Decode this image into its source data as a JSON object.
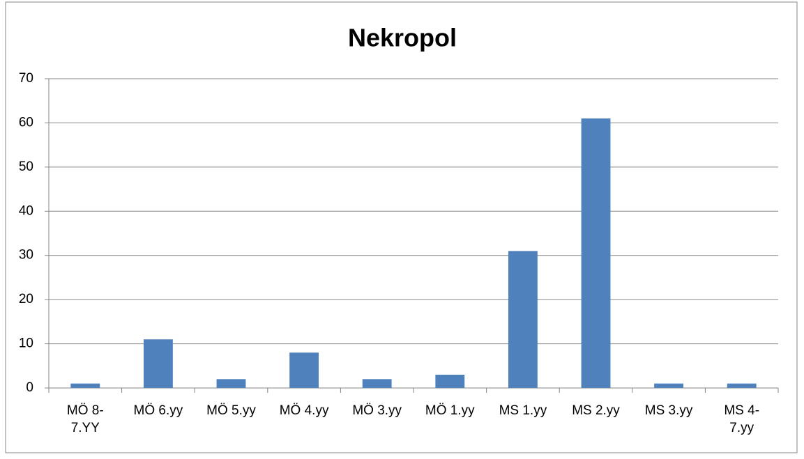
{
  "chart_data": {
    "type": "bar",
    "title": "Nekropol",
    "categories": [
      "MÖ 8-7.YY",
      "MÖ 6.yy",
      "MÖ 5.yy",
      "MÖ 4.yy",
      "MÖ 3.yy",
      "MÖ 1.yy",
      "MS 1.yy",
      "MS 2.yy",
      "MS 3.yy",
      "MS 4-7.yy"
    ],
    "values": [
      1,
      11,
      2,
      8,
      2,
      3,
      31,
      61,
      1,
      1
    ],
    "color": "#4f81bd",
    "ylim": [
      0,
      70
    ],
    "yticks": [
      0,
      10,
      20,
      30,
      40,
      50,
      60,
      70
    ],
    "grid": true
  }
}
